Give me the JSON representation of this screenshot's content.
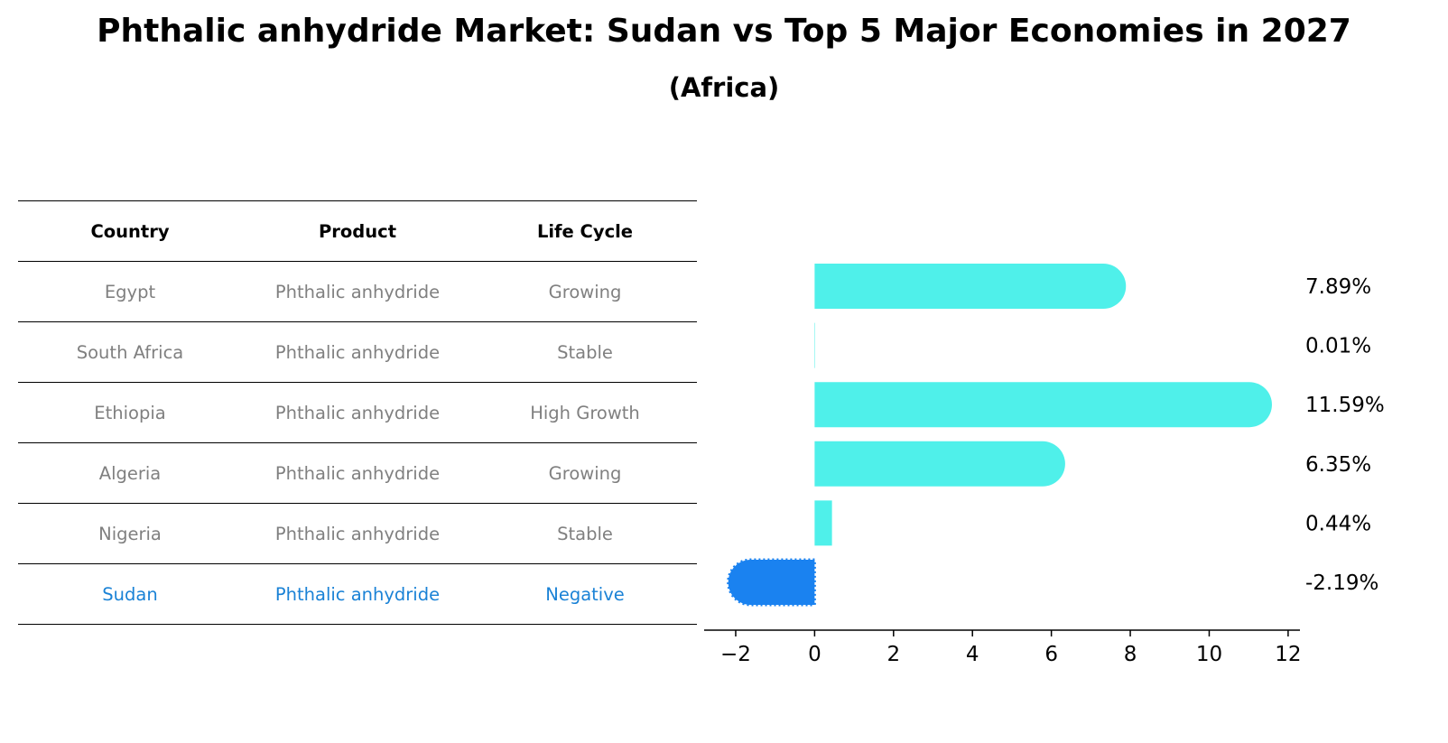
{
  "chart_data": {
    "type": "bar",
    "orientation": "horizontal",
    "title": "Phthalic anhydride Market: Sudan vs Top 5 Major Economies in 2027",
    "subtitle": "(Africa)",
    "categories": [
      "Egypt",
      "South Africa",
      "Ethiopia",
      "Algeria",
      "Nigeria",
      "Sudan"
    ],
    "values": [
      7.89,
      0.01,
      11.59,
      6.35,
      0.44,
      -2.19
    ],
    "value_labels": [
      "7.89%",
      "0.01%",
      "11.59%",
      "6.35%",
      "0.44%",
      "-2.19%"
    ],
    "xlim": [
      -2.8,
      12.3
    ],
    "xticks": [
      -2,
      0,
      2,
      4,
      6,
      8,
      10,
      12
    ],
    "xtick_labels": [
      "−2",
      "0",
      "2",
      "4",
      "6",
      "8",
      "10",
      "12"
    ],
    "highlight": "Sudan",
    "colors": {
      "default": "#4ff0ea",
      "highlight": "#1a82f0"
    }
  },
  "table": {
    "headers": [
      "Country",
      "Product",
      "Life Cycle"
    ],
    "rows": [
      [
        "Egypt",
        "Phthalic anhydride",
        "Growing"
      ],
      [
        "South Africa",
        "Phthalic anhydride",
        "Stable"
      ],
      [
        "Ethiopia",
        "Phthalic anhydride",
        "High Growth"
      ],
      [
        "Algeria",
        "Phthalic anhydride",
        "Growing"
      ],
      [
        "Nigeria",
        "Phthalic anhydride",
        "Stable"
      ],
      [
        "Sudan",
        "Phthalic anhydride",
        "Negative"
      ]
    ]
  }
}
